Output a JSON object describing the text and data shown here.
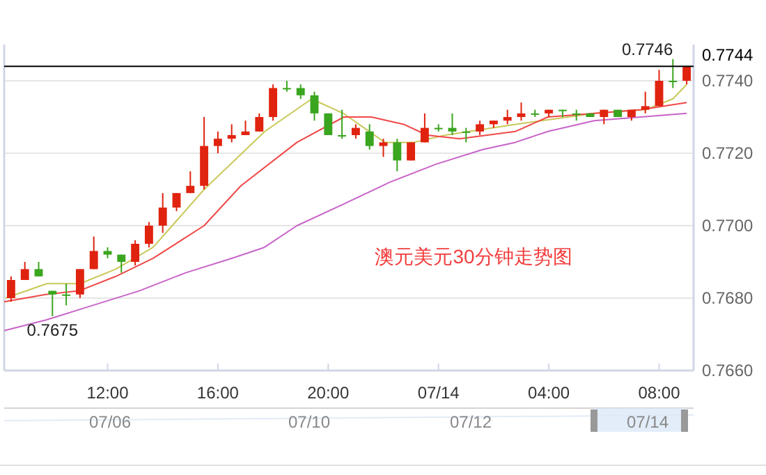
{
  "chart_data": {
    "type": "candlestick",
    "x": [
      "--07-13T08:30",
      "--07-13T09:00",
      "--07-13T09:30",
      "--07-13T10:00",
      "--07-13T10:30",
      "--07-13T11:00",
      "--07-13T11:30",
      "--07-13T12:00",
      "--07-13T12:30",
      "--07-13T13:00",
      "--07-13T13:30",
      "--07-13T14:00",
      "--07-13T14:30",
      "--07-13T15:00",
      "--07-13T15:30",
      "--07-13T16:00",
      "--07-13T16:30",
      "--07-13T17:00",
      "--07-13T17:30",
      "--07-13T18:00",
      "--07-13T18:30",
      "--07-13T19:00",
      "--07-13T19:30",
      "--07-13T20:00",
      "--07-13T20:30",
      "--07-13T21:00",
      "--07-13T21:30",
      "--07-13T22:00",
      "--07-13T22:30",
      "--07-13T23:00",
      "--07-13T23:30",
      "--07-14T00:00",
      "--07-14T00:30",
      "--07-14T01:00",
      "--07-14T01:30",
      "--07-14T02:00",
      "--07-14T02:30",
      "--07-14T03:00",
      "--07-14T03:30",
      "--07-14T04:00",
      "--07-14T04:30",
      "--07-14T05:00",
      "--07-14T05:30",
      "--07-14T06:00",
      "--07-14T06:30",
      "--07-14T07:00",
      "--07-14T07:30",
      "--07-14T08:00",
      "--07-14T08:30",
      "--07-14T09:00"
    ],
    "ohlc": [
      [
        0.768,
        0.7686,
        0.7679,
        0.7685
      ],
      [
        0.7685,
        0.769,
        0.7685,
        0.7688
      ],
      [
        0.7688,
        0.769,
        0.7686,
        0.7686
      ],
      [
        0.7682,
        0.7682,
        0.7675,
        0.7681
      ],
      [
        0.7681,
        0.7684,
        0.7678,
        0.7681
      ],
      [
        0.7681,
        0.7688,
        0.768,
        0.7688
      ],
      [
        0.7688,
        0.7697,
        0.7688,
        0.7693
      ],
      [
        0.7693,
        0.7694,
        0.7691,
        0.7692
      ],
      [
        0.7692,
        0.7692,
        0.7687,
        0.769
      ],
      [
        0.769,
        0.7696,
        0.7689,
        0.7695
      ],
      [
        0.7695,
        0.7701,
        0.7694,
        0.77
      ],
      [
        0.77,
        0.7709,
        0.7698,
        0.7705
      ],
      [
        0.7705,
        0.7709,
        0.7704,
        0.7709
      ],
      [
        0.7709,
        0.7715,
        0.7709,
        0.7711
      ],
      [
        0.7711,
        0.773,
        0.771,
        0.7722
      ],
      [
        0.7722,
        0.7726,
        0.772,
        0.7724
      ],
      [
        0.7724,
        0.7728,
        0.7723,
        0.7725
      ],
      [
        0.7725,
        0.7729,
        0.7725,
        0.7726
      ],
      [
        0.7726,
        0.7731,
        0.7726,
        0.773
      ],
      [
        0.773,
        0.7739,
        0.7729,
        0.7738
      ],
      [
        0.7738,
        0.774,
        0.7737,
        0.7738
      ],
      [
        0.7738,
        0.7739,
        0.7735,
        0.7736
      ],
      [
        0.7736,
        0.7737,
        0.7729,
        0.7731
      ],
      [
        0.7731,
        0.7731,
        0.7725,
        0.7725
      ],
      [
        0.7725,
        0.7732,
        0.7724,
        0.7725
      ],
      [
        0.7725,
        0.7728,
        0.7724,
        0.7727
      ],
      [
        0.7726,
        0.7728,
        0.7721,
        0.7722
      ],
      [
        0.7722,
        0.7724,
        0.7719,
        0.7723
      ],
      [
        0.7723,
        0.7724,
        0.7715,
        0.7718
      ],
      [
        0.7718,
        0.7723,
        0.7718,
        0.7723
      ],
      [
        0.7723,
        0.7731,
        0.7723,
        0.7727
      ],
      [
        0.7727,
        0.7728,
        0.7726,
        0.7727
      ],
      [
        0.7727,
        0.7731,
        0.7725,
        0.7726
      ],
      [
        0.7726,
        0.7727,
        0.7723,
        0.7726
      ],
      [
        0.7726,
        0.7729,
        0.7725,
        0.7728
      ],
      [
        0.7728,
        0.7729,
        0.7727,
        0.7729
      ],
      [
        0.7729,
        0.7732,
        0.7728,
        0.773
      ],
      [
        0.773,
        0.7734,
        0.7729,
        0.7731
      ],
      [
        0.7731,
        0.7732,
        0.773,
        0.7731
      ],
      [
        0.7731,
        0.7732,
        0.773,
        0.7732
      ],
      [
        0.7732,
        0.7732,
        0.773,
        0.7732
      ],
      [
        0.7731,
        0.7732,
        0.7729,
        0.7731
      ],
      [
        0.7731,
        0.7731,
        0.773,
        0.773
      ],
      [
        0.773,
        0.7732,
        0.7728,
        0.7732
      ],
      [
        0.7732,
        0.7732,
        0.773,
        0.773
      ],
      [
        0.773,
        0.7732,
        0.7729,
        0.7732
      ],
      [
        0.7732,
        0.7737,
        0.7731,
        0.7733
      ],
      [
        0.7733,
        0.7743,
        0.7733,
        0.774
      ],
      [
        0.774,
        0.7746,
        0.7738,
        0.774
      ],
      [
        0.774,
        0.7744,
        0.7739,
        0.7744
      ]
    ],
    "colors": [
      "#e0230f",
      "#e0230f",
      "#3aa51e",
      "#3aa51e",
      "#3aa51e",
      "#e0230f",
      "#e0230f",
      "#3aa51e",
      "#3aa51e",
      "#e0230f",
      "#e0230f",
      "#e0230f",
      "#e0230f",
      "#e0230f",
      "#e0230f",
      "#e0230f",
      "#e0230f",
      "#e0230f",
      "#e0230f",
      "#e0230f",
      "#3aa51e",
      "#3aa51e",
      "#3aa51e",
      "#3aa51e",
      "#3aa51e",
      "#e0230f",
      "#3aa51e",
      "#e0230f",
      "#3aa51e",
      "#e0230f",
      "#e0230f",
      "#3aa51e",
      "#3aa51e",
      "#3aa51e",
      "#e0230f",
      "#e0230f",
      "#e0230f",
      "#e0230f",
      "#3aa51e",
      "#e0230f",
      "#3aa51e",
      "#3aa51e",
      "#3aa51e",
      "#e0230f",
      "#3aa51e",
      "#e0230f",
      "#e0230f",
      "#e0230f",
      "#3aa51e",
      "#e0230f"
    ],
    "series": [
      {
        "type": "line",
        "color": "#c8c85a",
        "x": [
          "--07-13T08:18",
          "--07-13T09:48",
          "--07-13T11:00",
          "--07-13T12:18",
          "--07-13T13:39",
          "--07-13T15:30",
          "--07-13T17:42",
          "--07-13T19:24",
          "--07-13T20:33",
          "--07-13T22:03",
          "--07-13T23:06",
          "--07-14T00:15",
          "--07-14T02:48",
          "--07-14T05:39",
          "--07-14T07:30",
          "--07-14T08:30",
          "--07-14T09:00"
        ],
        "values": [
          0.768,
          0.7684,
          0.7684,
          0.7688,
          0.7694,
          0.771,
          0.7726,
          0.7735,
          0.7731,
          0.7723,
          0.7723,
          0.7725,
          0.7728,
          0.7731,
          0.7732,
          0.7735,
          0.7739
        ]
      },
      {
        "type": "line",
        "color": "#f04848",
        "x": [
          "--07-13T08:15",
          "--07-13T09:46",
          "--07-13T10:58",
          "--07-13T12:18",
          "--07-13T13:39",
          "--07-13T15:30",
          "--07-13T16:50",
          "--07-13T18:52",
          "--07-13T20:34",
          "--07-13T21:34",
          "--07-13T22:44",
          "--07-13T23:35",
          "--07-14T00:46",
          "--07-14T02:47",
          "--07-14T03:58",
          "--07-14T05:39",
          "--07-14T07:20",
          "--07-14T09:00"
        ],
        "values": [
          0.7679,
          0.7681,
          0.7682,
          0.7686,
          0.7691,
          0.77,
          0.7711,
          0.7723,
          0.773,
          0.773,
          0.7728,
          0.7725,
          0.7724,
          0.7726,
          0.773,
          0.7731,
          0.7732,
          0.7734
        ]
      },
      {
        "type": "line",
        "color": "#c864c8",
        "x": [
          "--07-13T08:15",
          "--07-13T09:47",
          "--07-13T11:28",
          "--07-13T13:09",
          "--07-13T14:50",
          "--07-13T16:31",
          "--07-13T17:41",
          "--07-13T18:52",
          "--07-13T20:34",
          "--07-13T22:14",
          "--07-13T23:55",
          "--07-14T01:36",
          "--07-14T02:47",
          "--07-14T03:58",
          "--07-14T05:39",
          "--07-14T07:20",
          "--07-14T09:00"
        ],
        "values": [
          0.7671,
          0.7674,
          0.7678,
          0.7682,
          0.7687,
          0.7691,
          0.7694,
          0.77,
          0.7706,
          0.7712,
          0.7717,
          0.7721,
          0.7723,
          0.7726,
          0.7729,
          0.773,
          0.7731
        ]
      }
    ],
    "xlim": [
      "--07-13T08:15",
      "--07-14T09:15"
    ],
    "xticks": [
      {
        "value": "--07-13T12:00",
        "label": "12:00"
      },
      {
        "value": "--07-13T16:00",
        "label": "16:00"
      },
      {
        "value": "--07-13T20:00",
        "label": "20:00"
      },
      {
        "value": "--07-14T00:00",
        "label": "07/14"
      },
      {
        "value": "--07-14T04:00",
        "label": "04:00"
      },
      {
        "value": "--07-14T08:00",
        "label": "08:00"
      }
    ],
    "ylim": [
      0.766,
      0.775
    ],
    "yticks": [
      {
        "value": 0.766,
        "label": "0.7660"
      },
      {
        "value": 0.768,
        "label": "0.7680"
      },
      {
        "value": 0.77,
        "label": "0.7700"
      },
      {
        "value": 0.772,
        "label": "0.7720"
      },
      {
        "value": 0.774,
        "label": "0.7740"
      }
    ],
    "ref_lines": [
      {
        "axis": "y",
        "value": 0.7744,
        "label": "0.7744",
        "color": "#000000"
      }
    ],
    "grid": "y",
    "annotations": [
      {
        "text": "0.7746",
        "x": "--07-14T08:30",
        "y": 0.7746
      },
      {
        "text": "0.7675",
        "x": "--07-13T10:00",
        "y": 0.7675
      },
      "澳元美元30分钟走势图",
      "07/06",
      "07/10",
      "07/12",
      "07/14"
    ]
  }
}
